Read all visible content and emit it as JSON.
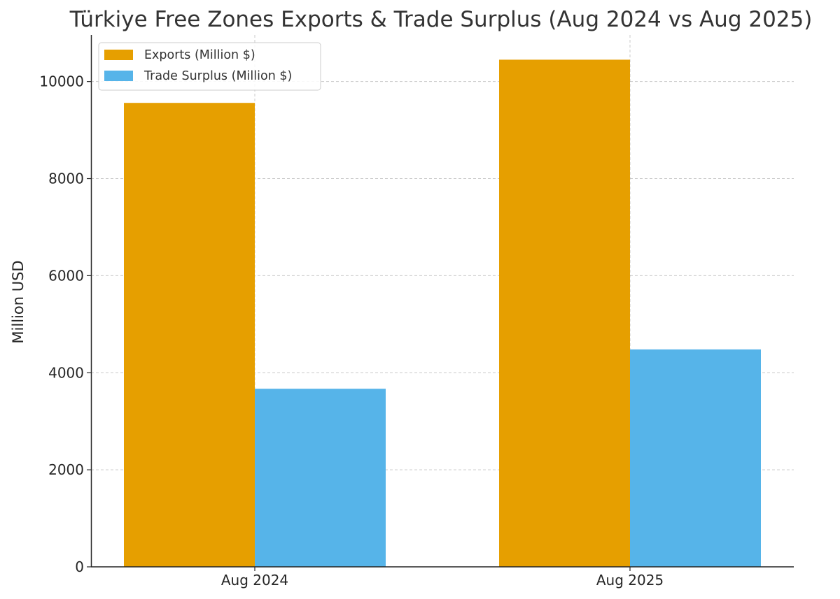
{
  "chart_data": {
    "type": "bar",
    "title": "Türkiye Free Zones Exports & Trade Surplus (Aug 2024 vs Aug 2025)",
    "xlabel": "",
    "ylabel": "Million USD",
    "categories": [
      "Aug 2024",
      "Aug 2025"
    ],
    "series": [
      {
        "name": "Exports (Million $)",
        "color": "#E69F00",
        "values": [
          9560,
          10450
        ]
      },
      {
        "name": "Trade Surplus (Million $)",
        "color": "#56B4E9",
        "values": [
          3670,
          4480
        ]
      }
    ],
    "ylim": [
      0,
      10960
    ],
    "yticks": [
      0,
      2000,
      4000,
      6000,
      8000,
      10000
    ],
    "ytick_labels": [
      "0",
      "2000",
      "4000",
      "6000",
      "8000",
      "10000"
    ],
    "grid": true,
    "legend_position": "top-left"
  }
}
